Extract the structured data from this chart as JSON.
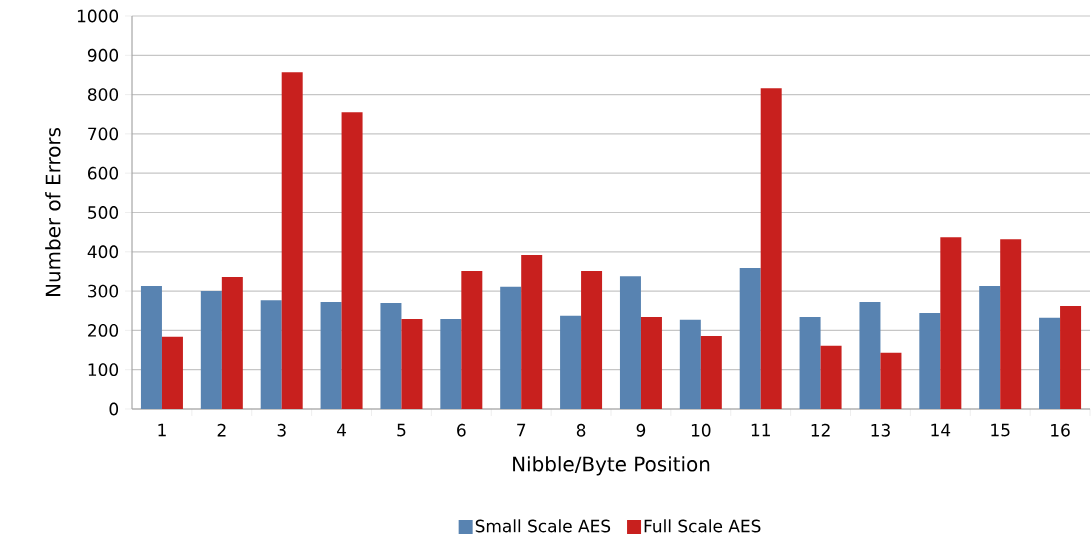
{
  "chart_data": {
    "type": "bar",
    "xlabel": "Nibble/Byte Position",
    "ylabel": "Number of Errors",
    "categories": [
      "1",
      "2",
      "3",
      "4",
      "5",
      "6",
      "7",
      "8",
      "9",
      "10",
      "11",
      "12",
      "13",
      "14",
      "15",
      "16"
    ],
    "series": [
      {
        "name": "Small Scale AES",
        "color": "#5883b1",
        "values": [
          313,
          300,
          277,
          272,
          270,
          229,
          311,
          237,
          338,
          227,
          359,
          234,
          272,
          244,
          313,
          232
        ]
      },
      {
        "name": "Full Scale AES",
        "color": "#c8201e",
        "values": [
          184,
          336,
          857,
          755,
          229,
          351,
          392,
          351,
          234,
          186,
          816,
          161,
          143,
          437,
          432,
          262
        ]
      }
    ],
    "ylim": [
      0,
      1000
    ],
    "yticks": [
      0,
      100,
      200,
      300,
      400,
      500,
      600,
      700,
      800,
      900,
      1000
    ],
    "grid": "y",
    "legend": "bottom"
  }
}
